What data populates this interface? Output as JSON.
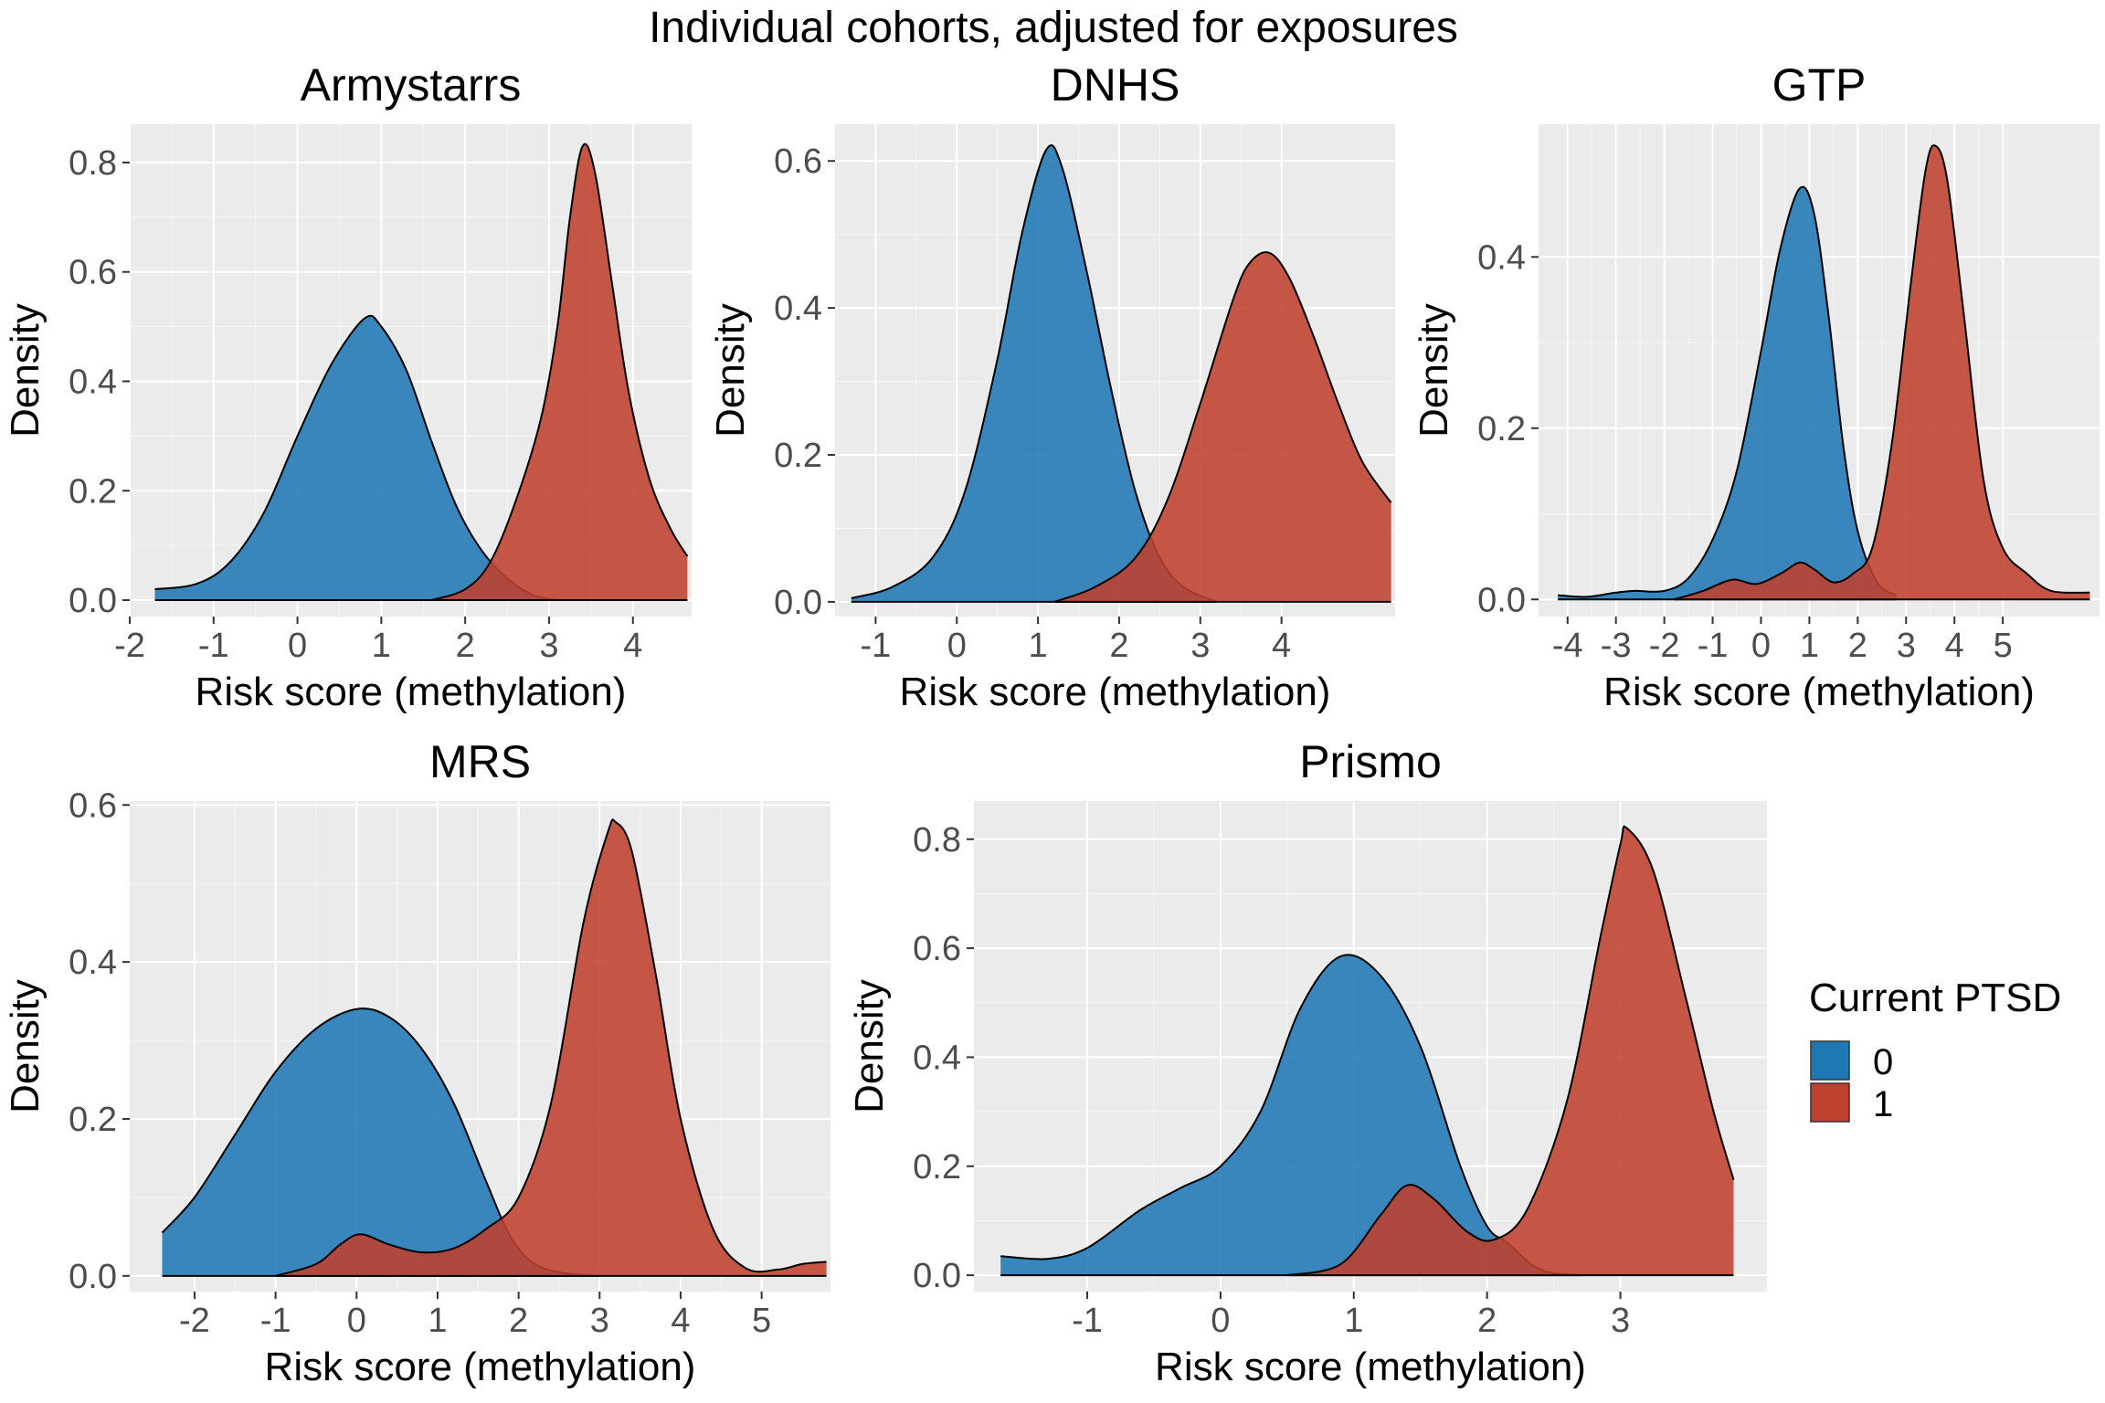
{
  "figure": {
    "title": "Individual cohorts, adjusted for exposures"
  },
  "legend": {
    "title": "Current PTSD",
    "placement": "right",
    "entries": [
      {
        "label": "0",
        "color": "#1f78b4"
      },
      {
        "label": "1",
        "color": "#bf412e"
      }
    ]
  },
  "colors": {
    "panel_background": "#ebebeb",
    "grid_major": "#ffffff",
    "outline": "#000000",
    "tick_text": "#4d4d4d"
  },
  "chart_data": [
    {
      "type": "area",
      "title": "Armystarrs",
      "xlabel": "Risk score (methylation)",
      "ylabel": "Density",
      "xlim": [
        -2.0,
        4.7
      ],
      "ylim": [
        -0.03,
        0.87
      ],
      "x_ticks": [
        -2,
        -1,
        0,
        1,
        2,
        3,
        4
      ],
      "y_ticks": [
        0.0,
        0.2,
        0.4,
        0.6,
        0.8
      ],
      "y_tick_labels": [
        "0.0",
        "0.2",
        "0.4",
        "0.6",
        "0.8"
      ],
      "grid": true,
      "series": [
        {
          "name": "0",
          "color": "#1f78b4",
          "points": [
            [
              -1.7,
              0.02
            ],
            [
              -1.2,
              0.03
            ],
            [
              -0.8,
              0.07
            ],
            [
              -0.4,
              0.16
            ],
            [
              0.0,
              0.3
            ],
            [
              0.4,
              0.43
            ],
            [
              0.8,
              0.515
            ],
            [
              1.0,
              0.5
            ],
            [
              1.3,
              0.42
            ],
            [
              1.6,
              0.29
            ],
            [
              1.9,
              0.17
            ],
            [
              2.2,
              0.09
            ],
            [
              2.5,
              0.04
            ],
            [
              2.8,
              0.01
            ],
            [
              3.1,
              0.0
            ]
          ]
        },
        {
          "name": "1",
          "color": "#bf412e",
          "points": [
            [
              1.6,
              0.0
            ],
            [
              2.0,
              0.02
            ],
            [
              2.3,
              0.07
            ],
            [
              2.6,
              0.18
            ],
            [
              2.9,
              0.33
            ],
            [
              3.1,
              0.5
            ],
            [
              3.25,
              0.7
            ],
            [
              3.4,
              0.83
            ],
            [
              3.55,
              0.78
            ],
            [
              3.75,
              0.58
            ],
            [
              3.95,
              0.38
            ],
            [
              4.2,
              0.22
            ],
            [
              4.45,
              0.13
            ],
            [
              4.65,
              0.08
            ]
          ]
        }
      ]
    },
    {
      "type": "area",
      "title": "DNHS",
      "xlabel": "Risk score (methylation)",
      "ylabel": "Density",
      "xlim": [
        -1.5,
        5.4
      ],
      "ylim": [
        -0.02,
        0.65
      ],
      "x_ticks": [
        -1,
        0,
        1,
        2,
        3,
        4
      ],
      "y_ticks": [
        0.0,
        0.2,
        0.4,
        0.6
      ],
      "y_tick_labels": [
        "0.0",
        "0.2",
        "0.4",
        "0.6"
      ],
      "grid": true,
      "series": [
        {
          "name": "0",
          "color": "#1f78b4",
          "points": [
            [
              -1.3,
              0.005
            ],
            [
              -0.8,
              0.02
            ],
            [
              -0.3,
              0.06
            ],
            [
              0.1,
              0.15
            ],
            [
              0.5,
              0.33
            ],
            [
              0.8,
              0.5
            ],
            [
              1.1,
              0.615
            ],
            [
              1.3,
              0.59
            ],
            [
              1.6,
              0.45
            ],
            [
              1.9,
              0.29
            ],
            [
              2.2,
              0.15
            ],
            [
              2.5,
              0.06
            ],
            [
              2.8,
              0.02
            ],
            [
              3.2,
              0.0
            ]
          ]
        },
        {
          "name": "1",
          "color": "#bf412e",
          "points": [
            [
              1.2,
              0.0
            ],
            [
              1.7,
              0.02
            ],
            [
              2.2,
              0.06
            ],
            [
              2.6,
              0.14
            ],
            [
              3.0,
              0.27
            ],
            [
              3.4,
              0.41
            ],
            [
              3.6,
              0.46
            ],
            [
              3.85,
              0.475
            ],
            [
              4.1,
              0.44
            ],
            [
              4.4,
              0.36
            ],
            [
              4.7,
              0.27
            ],
            [
              5.0,
              0.19
            ],
            [
              5.35,
              0.135
            ]
          ]
        }
      ]
    },
    {
      "type": "area",
      "title": "GTP",
      "xlabel": "Risk score (methylation)",
      "ylabel": "Density",
      "xlim": [
        -4.6,
        7.0
      ],
      "ylim": [
        -0.02,
        0.555
      ],
      "x_ticks": [
        -4,
        -3,
        -2,
        -1,
        0,
        1,
        2,
        3,
        4,
        5
      ],
      "y_ticks": [
        0.0,
        0.2,
        0.4
      ],
      "y_tick_labels": [
        "0.0",
        "0.2",
        "0.4"
      ],
      "grid": true,
      "series": [
        {
          "name": "0",
          "color": "#1f78b4",
          "points": [
            [
              -4.2,
              0.005
            ],
            [
              -3.6,
              0.003
            ],
            [
              -3.0,
              0.008
            ],
            [
              -2.6,
              0.01
            ],
            [
              -2.0,
              0.01
            ],
            [
              -1.5,
              0.025
            ],
            [
              -1.0,
              0.07
            ],
            [
              -0.5,
              0.15
            ],
            [
              0.0,
              0.29
            ],
            [
              0.4,
              0.41
            ],
            [
              0.8,
              0.48
            ],
            [
              1.1,
              0.45
            ],
            [
              1.4,
              0.33
            ],
            [
              1.7,
              0.18
            ],
            [
              2.0,
              0.08
            ],
            [
              2.4,
              0.02
            ],
            [
              2.8,
              0.005
            ]
          ]
        },
        {
          "name": "1",
          "color": "#bf412e",
          "points": [
            [
              -1.8,
              0.0
            ],
            [
              -1.2,
              0.01
            ],
            [
              -0.6,
              0.023
            ],
            [
              -0.1,
              0.018
            ],
            [
              0.4,
              0.03
            ],
            [
              0.8,
              0.043
            ],
            [
              1.1,
              0.035
            ],
            [
              1.5,
              0.02
            ],
            [
              1.9,
              0.03
            ],
            [
              2.3,
              0.06
            ],
            [
              2.7,
              0.18
            ],
            [
              3.1,
              0.37
            ],
            [
              3.4,
              0.5
            ],
            [
              3.6,
              0.53
            ],
            [
              3.85,
              0.49
            ],
            [
              4.2,
              0.33
            ],
            [
              4.6,
              0.14
            ],
            [
              5.0,
              0.06
            ],
            [
              5.5,
              0.03
            ],
            [
              6.0,
              0.01
            ],
            [
              6.8,
              0.008
            ]
          ]
        }
      ]
    },
    {
      "type": "area",
      "title": "MRS",
      "xlabel": "Risk score (methylation)",
      "ylabel": "Density",
      "xlim": [
        -2.8,
        5.85
      ],
      "ylim": [
        -0.02,
        0.605
      ],
      "x_ticks": [
        -2,
        -1,
        0,
        1,
        2,
        3,
        4,
        5
      ],
      "y_ticks": [
        0.0,
        0.2,
        0.4,
        0.6
      ],
      "y_tick_labels": [
        "0.0",
        "0.2",
        "0.4",
        "0.6"
      ],
      "grid": true,
      "series": [
        {
          "name": "0",
          "color": "#1f78b4",
          "points": [
            [
              -2.4,
              0.055
            ],
            [
              -2.0,
              0.1
            ],
            [
              -1.5,
              0.18
            ],
            [
              -1.0,
              0.26
            ],
            [
              -0.5,
              0.315
            ],
            [
              0.0,
              0.34
            ],
            [
              0.4,
              0.33
            ],
            [
              0.8,
              0.29
            ],
            [
              1.2,
              0.22
            ],
            [
              1.6,
              0.12
            ],
            [
              1.9,
              0.05
            ],
            [
              2.2,
              0.015
            ],
            [
              2.6,
              0.003
            ],
            [
              3.0,
              0.0
            ]
          ]
        },
        {
          "name": "1",
          "color": "#bf412e",
          "points": [
            [
              -1.0,
              0.0
            ],
            [
              -0.5,
              0.015
            ],
            [
              -0.2,
              0.04
            ],
            [
              0.05,
              0.053
            ],
            [
              0.4,
              0.04
            ],
            [
              0.8,
              0.03
            ],
            [
              1.2,
              0.035
            ],
            [
              1.6,
              0.06
            ],
            [
              2.0,
              0.1
            ],
            [
              2.4,
              0.22
            ],
            [
              2.8,
              0.45
            ],
            [
              3.1,
              0.565
            ],
            [
              3.2,
              0.578
            ],
            [
              3.4,
              0.54
            ],
            [
              3.7,
              0.38
            ],
            [
              4.0,
              0.2
            ],
            [
              4.4,
              0.06
            ],
            [
              4.8,
              0.01
            ],
            [
              5.2,
              0.008
            ],
            [
              5.5,
              0.015
            ],
            [
              5.8,
              0.018
            ]
          ]
        }
      ]
    },
    {
      "type": "area",
      "title": "Prismo",
      "xlabel": "Risk score (methylation)",
      "ylabel": "Density",
      "xlim": [
        -1.85,
        4.1
      ],
      "ylim": [
        -0.03,
        0.87
      ],
      "x_ticks": [
        -1,
        0,
        1,
        2,
        3
      ],
      "y_ticks": [
        0.0,
        0.2,
        0.4,
        0.6,
        0.8
      ],
      "y_tick_labels": [
        "0.0",
        "0.2",
        "0.4",
        "0.6",
        "0.8"
      ],
      "grid": true,
      "series": [
        {
          "name": "0",
          "color": "#1f78b4",
          "points": [
            [
              -1.65,
              0.035
            ],
            [
              -1.3,
              0.03
            ],
            [
              -1.0,
              0.05
            ],
            [
              -0.6,
              0.12
            ],
            [
              -0.3,
              0.16
            ],
            [
              0.0,
              0.2
            ],
            [
              0.3,
              0.3
            ],
            [
              0.6,
              0.49
            ],
            [
              0.9,
              0.585
            ],
            [
              1.2,
              0.55
            ],
            [
              1.5,
              0.42
            ],
            [
              1.8,
              0.2
            ],
            [
              2.0,
              0.09
            ],
            [
              2.15,
              0.06
            ],
            [
              2.4,
              0.01
            ],
            [
              2.7,
              0.0
            ]
          ]
        },
        {
          "name": "1",
          "color": "#bf412e",
          "points": [
            [
              0.5,
              0.0
            ],
            [
              0.9,
              0.02
            ],
            [
              1.2,
              0.11
            ],
            [
              1.4,
              0.165
            ],
            [
              1.6,
              0.14
            ],
            [
              1.85,
              0.08
            ],
            [
              2.05,
              0.065
            ],
            [
              2.3,
              0.12
            ],
            [
              2.6,
              0.32
            ],
            [
              2.85,
              0.62
            ],
            [
              3.0,
              0.79
            ],
            [
              3.05,
              0.82
            ],
            [
              3.25,
              0.74
            ],
            [
              3.5,
              0.5
            ],
            [
              3.7,
              0.3
            ],
            [
              3.85,
              0.175
            ]
          ]
        }
      ]
    }
  ]
}
